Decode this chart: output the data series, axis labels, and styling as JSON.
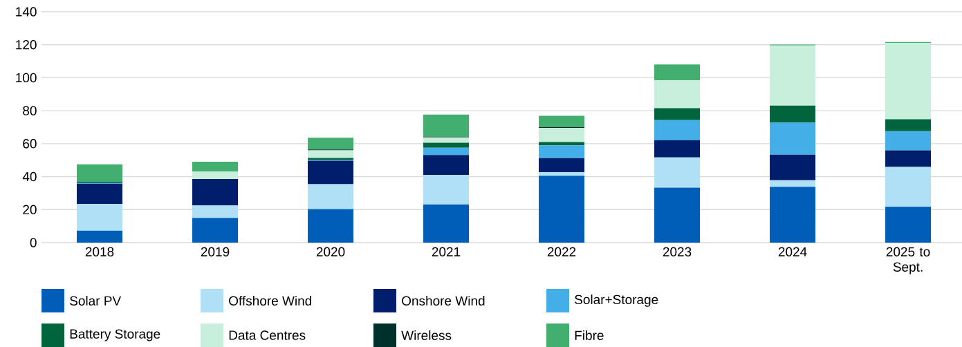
{
  "chart_data": {
    "type": "bar",
    "stacked": true,
    "grid": "y",
    "legend": "bottom",
    "categories": [
      "2018",
      "2019",
      "2020",
      "2021",
      "2022",
      "2023",
      "2024",
      "2025 to Sept."
    ],
    "ylim": [
      0,
      140
    ],
    "yticks": [
      0,
      20,
      40,
      60,
      80,
      100,
      120,
      140
    ],
    "series": [
      {
        "name": "Solar PV",
        "color": "#005eb8",
        "values": [
          7.2,
          15.0,
          20.3,
          23.2,
          40.6,
          33.3,
          33.8,
          21.8
        ]
      },
      {
        "name": "Offshore Wind",
        "color": "#b0e0f6",
        "values": [
          16.3,
          7.5,
          15.1,
          17.9,
          2.2,
          18.4,
          4.0,
          24.1
        ]
      },
      {
        "name": "Onshore Wind",
        "color": "#001e6c",
        "values": [
          12.1,
          16.1,
          14.3,
          12.0,
          8.4,
          10.4,
          15.5,
          10.0
        ]
      },
      {
        "name": "Solar+Storage",
        "color": "#43aee8",
        "values": [
          0.5,
          0,
          0.6,
          4.4,
          7.8,
          12.2,
          19.4,
          11.7
        ]
      },
      {
        "name": "Battery Storage",
        "color": "#00643c",
        "values": [
          0.3,
          0,
          1.0,
          3.1,
          2.0,
          7.2,
          10.4,
          7.2
        ]
      },
      {
        "name": "Data Centres",
        "color": "#c8eedc",
        "values": [
          0,
          4.6,
          4.7,
          3.2,
          8.5,
          17.0,
          36.5,
          46.3
        ]
      },
      {
        "name": "Wireless",
        "color": "#00302c",
        "values": [
          0.5,
          0,
          0.5,
          0.4,
          0.6,
          0,
          0,
          0
        ]
      },
      {
        "name": "Fibre",
        "color": "#43af6e",
        "values": [
          10.6,
          5.8,
          7.1,
          13.4,
          6.8,
          9.5,
          0.5,
          0.6
        ]
      }
    ]
  }
}
